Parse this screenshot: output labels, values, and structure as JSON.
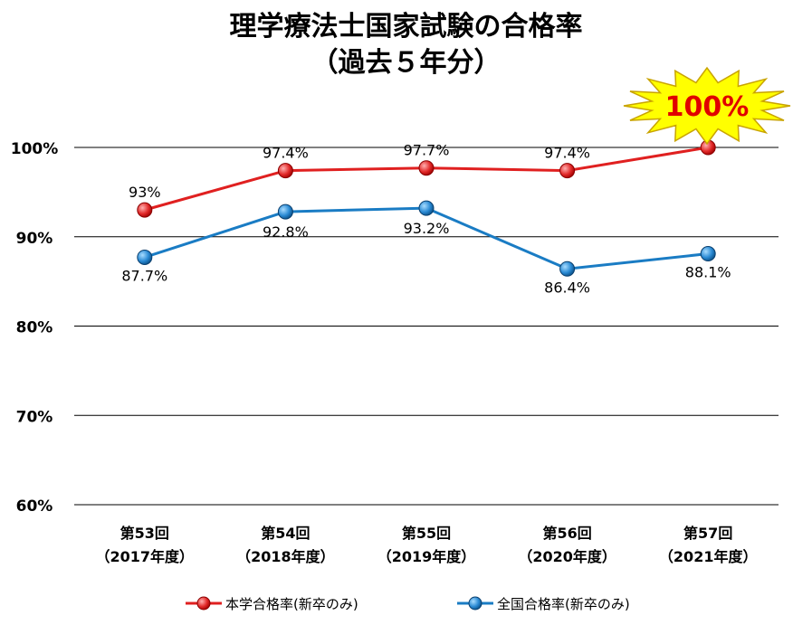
{
  "chart_data": {
    "type": "line",
    "title": "理学療法士国家試験の合格率",
    "subtitle": "（過去５年分）",
    "categories": [
      {
        "line1": "第53回",
        "line2": "（2017年度）"
      },
      {
        "line1": "第54回",
        "line2": "（2018年度）"
      },
      {
        "line1": "第55回",
        "line2": "（2019年度）"
      },
      {
        "line1": "第56回",
        "line2": "（2020年度）"
      },
      {
        "line1": "第57回",
        "line2": "（2021年度）"
      }
    ],
    "ylim": [
      60,
      100
    ],
    "yticks": [
      60,
      70,
      80,
      90,
      100
    ],
    "ytick_labels": [
      "60%",
      "70%",
      "80%",
      "90%",
      "100%"
    ],
    "grid": true,
    "legend_position": "bottom",
    "series": [
      {
        "name": "本学合格率(新卒のみ)",
        "values": [
          93.0,
          97.4,
          97.7,
          97.4,
          100.0
        ],
        "labels": [
          "93%",
          "97.4%",
          "97.7%",
          "97.4%",
          ""
        ],
        "color": "#e02020"
      },
      {
        "name": "全国合格率(新卒のみ)",
        "values": [
          87.7,
          92.8,
          93.2,
          86.4,
          88.1
        ],
        "labels": [
          "87.7%",
          "92.8%",
          "93.2%",
          "86.4%",
          "88.1%"
        ],
        "color": "#1a7cc4"
      }
    ],
    "callout": {
      "text": "100%",
      "fill": "#ffff00",
      "text_color": "#e00000"
    }
  }
}
